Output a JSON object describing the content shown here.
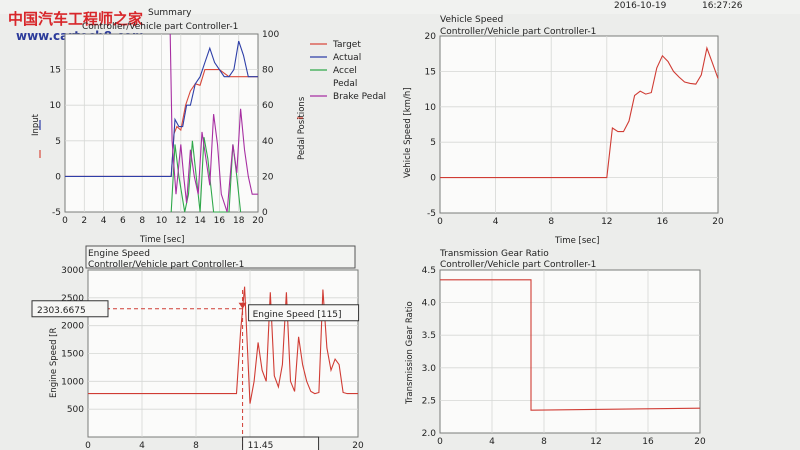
{
  "header": {
    "watermark_cn": "中国汽车工程师之家",
    "watermark_url": "www.cartech8.com",
    "date": "2016-10-19",
    "time": "16:27:26"
  },
  "colors": {
    "target": "#d84a3c",
    "actual": "#2e3fa8",
    "accel": "#2fa84a",
    "brake": "#a72fa2",
    "series": "#d03c34"
  },
  "chart_data": [
    {
      "id": "input",
      "type": "line",
      "title": "Summary",
      "subtitle": "Controller/Vehicle part Controller-1",
      "xlabel": "Time [sec]",
      "ylabel": "Input",
      "y2label": "Pedal Positions",
      "xlim": [
        0,
        20
      ],
      "ylim": [
        -5,
        20
      ],
      "y2lim": [
        0,
        100
      ],
      "xticks": [
        "0",
        "2",
        "4",
        "6",
        "8",
        "10",
        "12",
        "14",
        "16",
        "18",
        "20"
      ],
      "yticks": [
        "-5",
        "0",
        "5",
        "10",
        "15"
      ],
      "y2ticks": [
        "0",
        "20",
        "40",
        "60",
        "80",
        "100"
      ],
      "legend": [
        "Target",
        "Actual",
        "Accel",
        "Pedal",
        "Brake Pedal"
      ],
      "series": [
        {
          "name": "Target",
          "color": "#d84a3c",
          "x": [
            0,
            11,
            11.3,
            11.6,
            12,
            12.5,
            13,
            13.5,
            14,
            14.5,
            15,
            15.5,
            16,
            16.5,
            17,
            17.5,
            18,
            18.5,
            19,
            19.5,
            20
          ],
          "y": [
            0,
            0,
            6,
            7,
            6.5,
            10,
            12,
            13,
            12.8,
            15,
            15,
            15,
            15,
            14.5,
            14,
            14,
            14,
            14,
            14,
            14,
            14
          ]
        },
        {
          "name": "Actual",
          "color": "#2e3fa8",
          "x": [
            0,
            11,
            11.4,
            11.8,
            12.2,
            12.6,
            13,
            13.5,
            14,
            14.5,
            15,
            15.5,
            16,
            16.5,
            17,
            17.5,
            18,
            18.5,
            19,
            19.5,
            20
          ],
          "y": [
            0,
            0,
            8,
            7,
            7,
            10,
            10,
            13,
            14,
            16,
            18,
            16,
            15,
            14,
            14,
            15,
            19,
            17,
            14,
            14,
            14
          ]
        },
        {
          "name": "Accel",
          "color": "#2fa84a",
          "x": [
            11,
            11.4,
            11.8,
            12.4,
            12.8,
            13.2,
            14,
            14.4,
            14.8,
            15.4,
            17,
            17.4,
            17.8,
            18.2
          ],
          "y": [
            0,
            38,
            20,
            0,
            10,
            40,
            0,
            42,
            30,
            0,
            0,
            38,
            20,
            0
          ],
          "y2": true
        },
        {
          "name": "Brake Pedal",
          "color": "#a72fa2",
          "x": [
            10.9,
            11.1,
            11.5,
            12,
            12.3,
            12.6,
            13,
            13.4,
            13.8,
            14.2,
            14.6,
            15,
            15.4,
            15.8,
            16.2,
            16.8,
            17.4,
            17.8,
            18.2,
            18.6,
            19,
            19.4,
            20
          ],
          "y": [
            100,
            40,
            10,
            38,
            20,
            5,
            35,
            20,
            10,
            45,
            30,
            15,
            55,
            38,
            10,
            0,
            38,
            22,
            58,
            35,
            20,
            10,
            10
          ],
          "y2": true
        }
      ]
    },
    {
      "id": "speed",
      "type": "line",
      "title": "Vehicle Speed",
      "subtitle": "Controller/Vehicle part Controller-1",
      "xlabel": "Time [sec]",
      "ylabel": "Vehicle Speed [km/h]",
      "xlim": [
        0,
        20
      ],
      "ylim": [
        -5,
        20
      ],
      "xticks": [
        "0",
        "4",
        "8",
        "12",
        "16",
        "20"
      ],
      "yticks": [
        "-5",
        "0",
        "5",
        "10",
        "15",
        "20"
      ],
      "series": [
        {
          "name": "Vehicle Speed",
          "color": "#d03c34",
          "x": [
            0,
            12,
            12.4,
            12.8,
            13.2,
            13.6,
            14,
            14.4,
            14.8,
            15.2,
            15.6,
            16,
            16.4,
            16.8,
            17.2,
            17.6,
            18,
            18.4,
            18.8,
            19.2,
            19.6,
            20
          ],
          "y": [
            0,
            0,
            7,
            6.5,
            6.5,
            8,
            11.6,
            12.2,
            11.8,
            12,
            15.5,
            17.2,
            16.4,
            15,
            14.2,
            13.5,
            13.3,
            13.2,
            14.5,
            18.3,
            16.2,
            14
          ]
        }
      ]
    },
    {
      "id": "engine",
      "type": "line",
      "title": "Engine Speed",
      "subtitle": "Controller/Vehicle part Controller-1",
      "xlabel": "",
      "ylabel": "Engine Speed [R",
      "xlim": [
        0,
        20
      ],
      "ylim": [
        0,
        3000
      ],
      "xticks": [
        "0",
        "4",
        "8",
        "12",
        "16",
        "20"
      ],
      "yticks": [
        "3000",
        "2500",
        "2000",
        "1500",
        "1000",
        "500"
      ],
      "marker": {
        "x": 11.45,
        "y": 2303.6675,
        "x_label": "11.45",
        "y_label": "2303.6675",
        "tooltip": "Engine Speed [115]"
      },
      "series": [
        {
          "name": "Engine Speed",
          "color": "#d03c34",
          "x": [
            0,
            11,
            11.3,
            11.6,
            12,
            12.3,
            12.6,
            12.9,
            13.2,
            13.5,
            13.8,
            14.1,
            14.4,
            14.7,
            15,
            15.3,
            15.6,
            15.9,
            16.2,
            16.5,
            16.8,
            17.1,
            17.4,
            17.7,
            18,
            18.3,
            18.6,
            18.9,
            19.2,
            19.5,
            20
          ],
          "y": [
            780,
            780,
            1900,
            2700,
            600,
            1000,
            1700,
            1200,
            1000,
            2600,
            1100,
            900,
            1300,
            2600,
            1000,
            820,
            1800,
            1300,
            1000,
            820,
            780,
            800,
            2650,
            1600,
            1200,
            1400,
            1300,
            800,
            780,
            780,
            780
          ]
        }
      ]
    },
    {
      "id": "gear",
      "type": "line",
      "title": "Transmission Gear Ratio",
      "subtitle": "Controller/Vehicle part Controller-1",
      "xlabel": "",
      "ylabel": "Transmission Gear Ratio",
      "xlim": [
        0,
        20
      ],
      "ylim": [
        2.0,
        4.5
      ],
      "xticks": [
        "0",
        "4",
        "8",
        "12",
        "16",
        "20"
      ],
      "yticks": [
        "4.5",
        "4.0",
        "3.5",
        "3.0",
        "2.5",
        "2.0"
      ],
      "series": [
        {
          "name": "Transmission Gear Ratio",
          "color": "#d03c34",
          "x": [
            0,
            7,
            7,
            20
          ],
          "y": [
            4.35,
            4.35,
            2.35,
            2.38
          ]
        }
      ]
    }
  ]
}
